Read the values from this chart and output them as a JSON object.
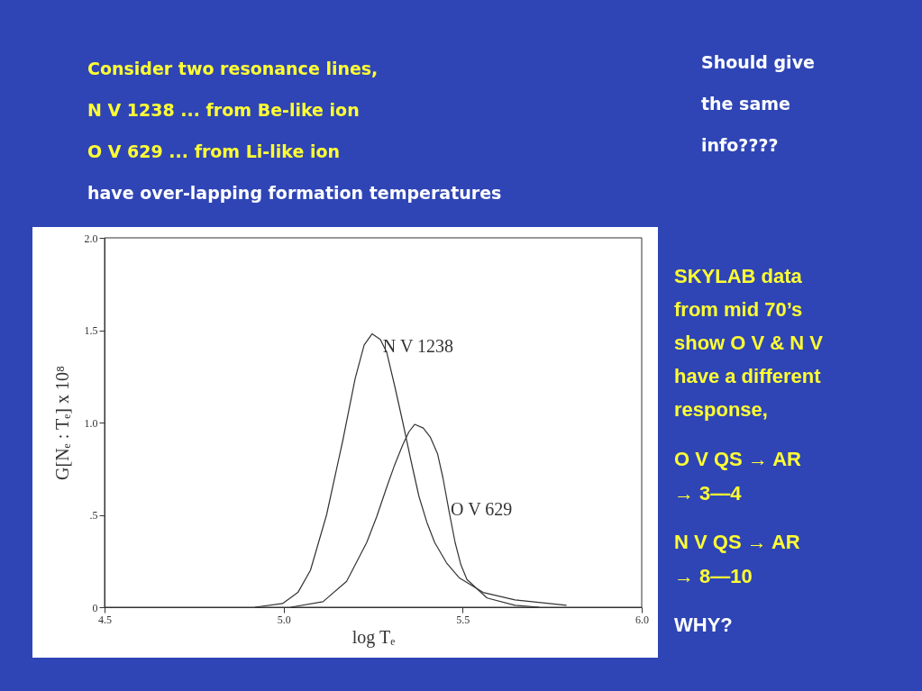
{
  "chart_data": {
    "type": "line",
    "xlabel": "log Tₑ",
    "ylabel": "G[Nₑ : Tₑ] x 10⁸",
    "xlim": [
      4.5,
      6.0
    ],
    "xticks": [
      {
        "value": 4.5,
        "label": "4.5"
      },
      {
        "value": 5.0,
        "label": "5.0"
      },
      {
        "value": 5.5,
        "label": "5.5"
      },
      {
        "value": 6.0,
        "label": "6.0"
      }
    ],
    "ylim": [
      0,
      2.0
    ],
    "yticks": [
      {
        "value": 0,
        "label": "0"
      },
      {
        "value": 0.5,
        "label": ".5"
      },
      {
        "value": 1.0,
        "label": "1.0"
      },
      {
        "value": 1.5,
        "label": "1.5"
      },
      {
        "value": 2.0,
        "label": "2.0"
      }
    ],
    "marker": "none",
    "line_style": "solid",
    "series": [
      {
        "name": "N V 1238",
        "color": "#333333",
        "x": [
          4.92,
          4.997,
          5.04,
          5.075,
          5.12,
          5.165,
          5.2,
          5.225,
          5.247,
          5.27,
          5.288,
          5.31,
          5.333,
          5.355,
          5.378,
          5.4,
          5.422,
          5.455,
          5.49,
          5.557,
          5.646,
          5.79
        ],
        "values": [
          0,
          0.02,
          0.08,
          0.2,
          0.5,
          0.9,
          1.24,
          1.42,
          1.48,
          1.45,
          1.38,
          1.2,
          1.0,
          0.8,
          0.6,
          0.46,
          0.35,
          0.24,
          0.16,
          0.08,
          0.04,
          0.01
        ]
      },
      {
        "name": "O V 629",
        "color": "#333333",
        "x": [
          5.02,
          5.11,
          5.176,
          5.232,
          5.26,
          5.288,
          5.31,
          5.333,
          5.35,
          5.366,
          5.39,
          5.41,
          5.43,
          5.445,
          5.462,
          5.479,
          5.495,
          5.512,
          5.568,
          5.646,
          5.714
        ],
        "values": [
          0,
          0.03,
          0.14,
          0.35,
          0.49,
          0.65,
          0.77,
          0.88,
          0.95,
          0.99,
          0.97,
          0.92,
          0.83,
          0.7,
          0.52,
          0.35,
          0.23,
          0.15,
          0.05,
          0.01,
          0
        ]
      }
    ],
    "annotations": [
      "Consider two resonance lines,",
      "N V 1238    ... from Be-like ion",
      "O V 629      ... from Li-like ion",
      "have over-lapping formation temperatures",
      "Should give",
      "the same",
      "info????",
      "SKYLAB data",
      "from mid 70’s",
      "show O V & N V",
      "have a different",
      "response,",
      "O V     QS → AR",
      "→ 3—4",
      "N V     QS → AR",
      "→ 8—10",
      "WHY?"
    ]
  }
}
